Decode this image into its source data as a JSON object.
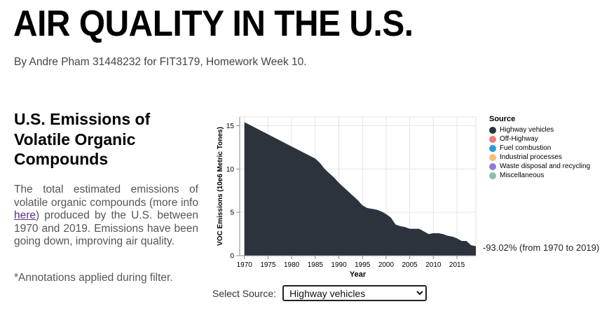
{
  "header": {
    "title": "AIR QUALITY IN THE U.S.",
    "byline": "By Andre Pham 31448232 for FIT3179, Homework Week 10."
  },
  "section": {
    "title": "U.S. Emissions of Volatile Organic Compounds",
    "desc_before_link": "The total estimated emissions of volatile organic compounds (more info ",
    "link_text": "here",
    "desc_after_link": ") produced by the U.S. between 1970 and 2019. Emissions have been going down, improving air quality.",
    "note": "*Annotations applied during filter."
  },
  "chart_data": {
    "type": "area",
    "xlabel": "Year",
    "ylabel": "VOC Emissions (10e6 Metric Tones)",
    "xlim": [
      1969,
      2019
    ],
    "ylim": [
      0,
      16
    ],
    "x_ticks": [
      1970,
      1975,
      1980,
      1985,
      1990,
      1995,
      2000,
      2005,
      2010,
      2015
    ],
    "y_ticks": [
      0,
      5,
      10,
      15
    ],
    "grid": true,
    "color": "#2c333c",
    "series": [
      {
        "name": "Highway vehicles",
        "x": [
          1970,
          1975,
          1980,
          1985,
          1986,
          1987,
          1988,
          1989,
          1990,
          1991,
          1992,
          1993,
          1994,
          1995,
          1996,
          1997,
          1998,
          1999,
          2000,
          2001,
          2002,
          2003,
          2004,
          2005,
          2006,
          2007,
          2008,
          2009,
          2010,
          2011,
          2012,
          2013,
          2014,
          2015,
          2016,
          2017,
          2018,
          2019
        ],
        "values": [
          15.4,
          14.0,
          12.6,
          11.2,
          10.7,
          10.0,
          9.5,
          9.0,
          8.4,
          7.9,
          7.4,
          6.9,
          6.4,
          5.8,
          5.5,
          5.4,
          5.3,
          5.1,
          4.8,
          4.4,
          3.6,
          3.4,
          3.3,
          3.1,
          3.1,
          3.1,
          2.8,
          2.5,
          2.6,
          2.6,
          2.5,
          2.3,
          2.2,
          2.0,
          1.7,
          1.7,
          1.2,
          1.1
        ]
      }
    ],
    "legend": {
      "title": "Source",
      "position": "right",
      "items": [
        {
          "label": "Highway vehicles",
          "color": "#2c333c"
        },
        {
          "label": "Off-Highway",
          "color": "#f27a78"
        },
        {
          "label": "Fuel combustion",
          "color": "#2b9ad8"
        },
        {
          "label": "Industrial processes",
          "color": "#f4bd7c"
        },
        {
          "label": "Waste disposal and recycling",
          "color": "#8b7ed6"
        },
        {
          "label": "Miscellaneous",
          "color": "#8fbcb0"
        }
      ]
    },
    "annotation": "-93.02% (from 1970 to 2019)"
  },
  "controls": {
    "select_label": "Select Source:",
    "select_value": "Highway vehicles"
  }
}
